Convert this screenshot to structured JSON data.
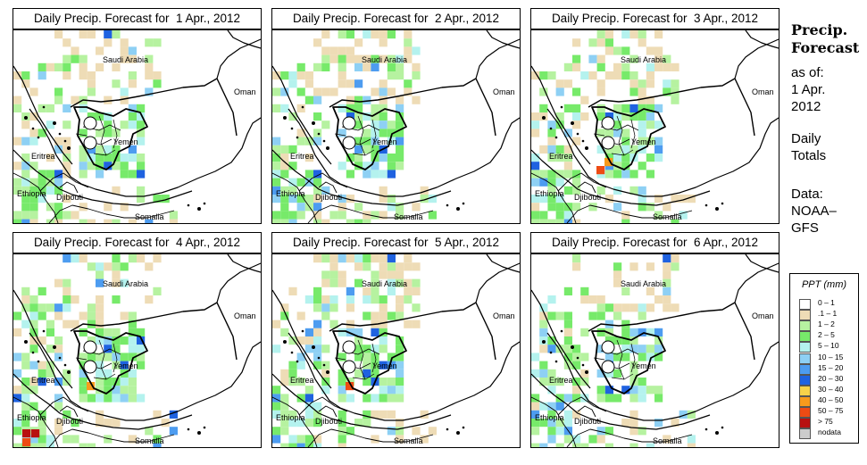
{
  "panels": [
    {
      "title": "Daily Precip. Forecast for  1 Apr., 2012",
      "seed": 11
    },
    {
      "title": "Daily Precip. Forecast for  2 Apr., 2012",
      "seed": 23
    },
    {
      "title": "Daily Precip. Forecast for  3 Apr., 2012",
      "seed": 37
    },
    {
      "title": "Daily Precip. Forecast for  4 Apr., 2012",
      "seed": 41
    },
    {
      "title": "Daily Precip. Forecast for  5 Apr., 2012",
      "seed": 53
    },
    {
      "title": "Daily Precip. Forecast for  6 Apr., 2012",
      "seed": 67
    }
  ],
  "places": {
    "saudi": "Saudi Arabia",
    "oman": "Oman",
    "yemen": "Yemen",
    "eritrea": "Eritrea",
    "ethiopia": "Ethiopia",
    "djibouti": "Djibouti",
    "somalia": "Somalia"
  },
  "side": {
    "heading_1": "Precip.",
    "heading_2": "Forecast",
    "asof_1": "as of:",
    "asof_2": "1 Apr.",
    "asof_3": "2012",
    "totals_1": "Daily",
    "totals_2": "Totals",
    "data_1": "Data:",
    "data_2": "NOAA–",
    "data_3": "GFS"
  },
  "legend": {
    "title": "PPT (mm)",
    "items": [
      {
        "label": "0 – 1",
        "color": "#ffffff"
      },
      {
        "label": ".1 – 1",
        "color": "#eedcb6"
      },
      {
        "label": "1 – 2",
        "color": "#b6f2a0"
      },
      {
        "label": "2 – 5",
        "color": "#77ea6a"
      },
      {
        "label": "5 – 10",
        "color": "#b4f2ee"
      },
      {
        "label": "10 – 15",
        "color": "#8ed0f4"
      },
      {
        "label": "15 – 20",
        "color": "#4d9cf0"
      },
      {
        "label": "20 – 30",
        "color": "#1f62e0"
      },
      {
        "label": "30 – 40",
        "color": "#f7d24a"
      },
      {
        "label": "40 – 50",
        "color": "#f79a1c"
      },
      {
        "label": "50 – 75",
        "color": "#ee4b14"
      },
      {
        "label": "> 75",
        "color": "#b81010"
      },
      {
        "label": "nodata",
        "color": "#cccccc"
      }
    ]
  }
}
